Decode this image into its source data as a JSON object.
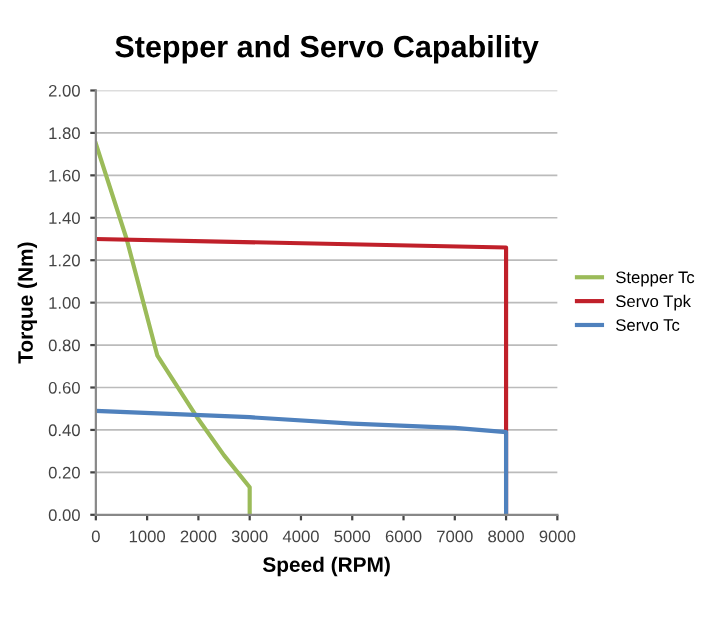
{
  "chart_data": {
    "type": "line",
    "title": "Stepper and Servo Capability",
    "xlabel": "Speed (RPM)",
    "ylabel": "Torque (Nm)",
    "series": [
      {
        "name": "Stepper Tc",
        "color": "#9bbb59",
        "x": [
          0,
          600,
          1200,
          2000,
          2500,
          3000,
          3000
        ],
        "values": [
          1.75,
          1.3,
          0.75,
          0.45,
          0.28,
          0.13,
          0
        ]
      },
      {
        "name": "Servo Tpk",
        "color": "#c0202a",
        "x": [
          0,
          8000,
          8000
        ],
        "values": [
          1.3,
          1.26,
          0
        ]
      },
      {
        "name": "Servo Tc",
        "color": "#4f81bd",
        "x": [
          0,
          3000,
          5000,
          7000,
          8000,
          8000
        ],
        "values": [
          0.49,
          0.46,
          0.43,
          0.41,
          0.39,
          0
        ]
      }
    ],
    "xlim": [
      0,
      9000
    ],
    "xticks": [
      0,
      1000,
      2000,
      3000,
      4000,
      5000,
      6000,
      7000,
      8000,
      9000
    ],
    "ylim": [
      0,
      2
    ],
    "yticks": [
      {
        "value": 0,
        "label": "0.00"
      },
      {
        "value": 0.2,
        "label": "0.20"
      },
      {
        "value": 0.4,
        "label": "0.40"
      },
      {
        "value": 0.6,
        "label": "0.60"
      },
      {
        "value": 0.8,
        "label": "0.80"
      },
      {
        "value": 1.0,
        "label": "1.00"
      },
      {
        "value": 1.2,
        "label": "1.20"
      },
      {
        "value": 1.4,
        "label": "1.40"
      },
      {
        "value": 1.6,
        "label": "1.60"
      },
      {
        "value": 1.8,
        "label": "1.80"
      },
      {
        "value": 2.0,
        "label": "2.00"
      }
    ],
    "grid": "y",
    "legend": "right",
    "marker": "none",
    "line_style": "solid"
  }
}
